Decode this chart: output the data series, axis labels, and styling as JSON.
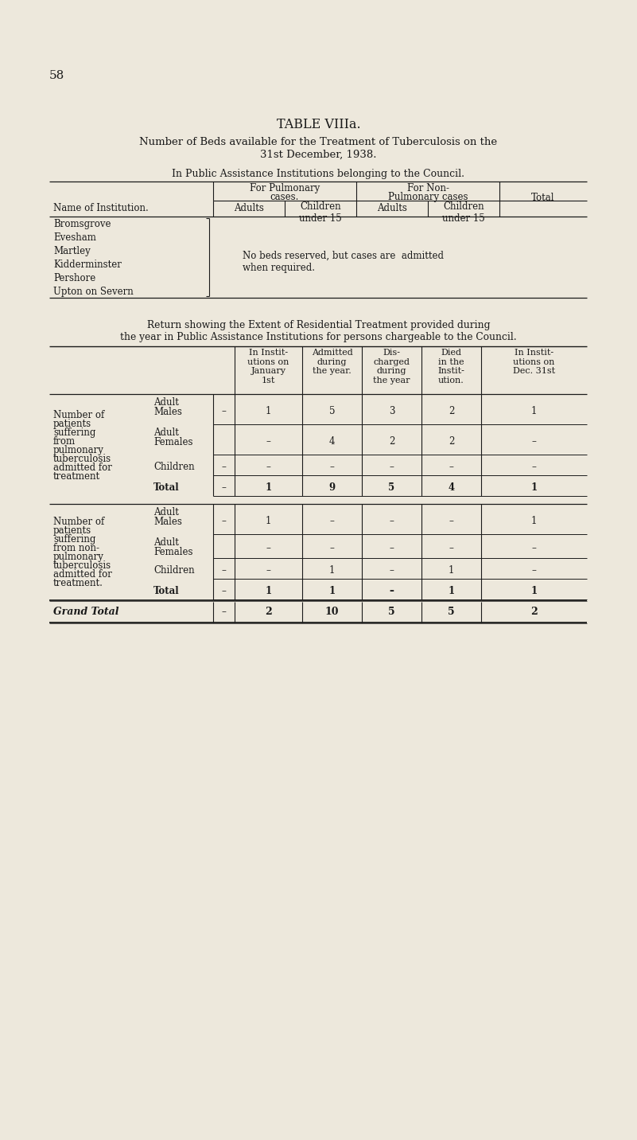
{
  "bg_color": "#ede8dc",
  "text_color": "#1a1a1a",
  "page_number": "58",
  "title1": "TABLE VIIIa.",
  "title2": "Number of Beds available for the Treatment of Tuberculosis on the",
  "title3": "31st December, 1938.",
  "subtitle1": "In Public Assistance Institutions belonging to the Council.",
  "table1_institutions": [
    "Bromsgrove",
    "Evesham",
    "Martley",
    "Kidderminster",
    "Pershore",
    "Upton on Severn"
  ],
  "table1_note_line1": "No beds reserved, but cases are  admitted",
  "table1_note_line2": "when required.",
  "return_title1": "Return showing the Extent of Residential Treatment provided during",
  "return_title2": "the year in Public Assistance Institutions for persons chargeable to the Council.",
  "col_headers": [
    "In Instit-\nutions on\nJanuary\n1st",
    "Admitted\nduring\nthe year.",
    "Dis-\ncharged\nduring\nthe year",
    "Died\nin the\nInstit-\nution.",
    "In Instit-\nutions on\nDec. 31st"
  ],
  "section1_label_lines": [
    "Number of",
    "patients",
    "suffering",
    "from",
    "pulmonary",
    "tuberculosis",
    "admitted for",
    "treatment"
  ],
  "section2_label_lines": [
    "Number of",
    "patients",
    "suffering",
    "from non-",
    "pulmonary",
    "tuberculosis",
    "admitted for",
    "treatment."
  ],
  "sec1_rows": [
    {
      "sub1": "Adult",
      "sub2": "Males",
      "has_dash": true,
      "vals": [
        "1",
        "5",
        "3",
        "2",
        "1"
      ]
    },
    {
      "sub1": "Adult",
      "sub2": "Females",
      "has_dash": false,
      "vals": [
        "–",
        "4",
        "2",
        "2",
        "–"
      ]
    },
    {
      "sub1": "Children",
      "sub2": "",
      "has_dash": true,
      "vals": [
        "–",
        "–",
        "–",
        "–",
        "–"
      ]
    },
    {
      "sub1": "Total",
      "sub2": "",
      "has_dash": true,
      "is_total": true,
      "vals": [
        "1",
        "9",
        "5",
        "4",
        "1"
      ]
    }
  ],
  "sec2_rows": [
    {
      "sub1": "Adult",
      "sub2": "Males",
      "has_dash": true,
      "vals": [
        "1",
        "–",
        "–",
        "–",
        "1"
      ]
    },
    {
      "sub1": "Adult",
      "sub2": "Females",
      "has_dash": false,
      "vals": [
        "–",
        "–",
        "–",
        "–",
        "–"
      ]
    },
    {
      "sub1": "Children",
      "sub2": "",
      "has_dash": true,
      "vals": [
        "–",
        "1",
        "–",
        "1",
        "–"
      ]
    },
    {
      "sub1": "Total",
      "sub2": "",
      "has_dash": true,
      "is_total": true,
      "vals": [
        "1",
        "1",
        "–",
        "1",
        "1"
      ]
    }
  ],
  "grand_total": [
    "2",
    "10",
    "5",
    "5",
    "2"
  ]
}
